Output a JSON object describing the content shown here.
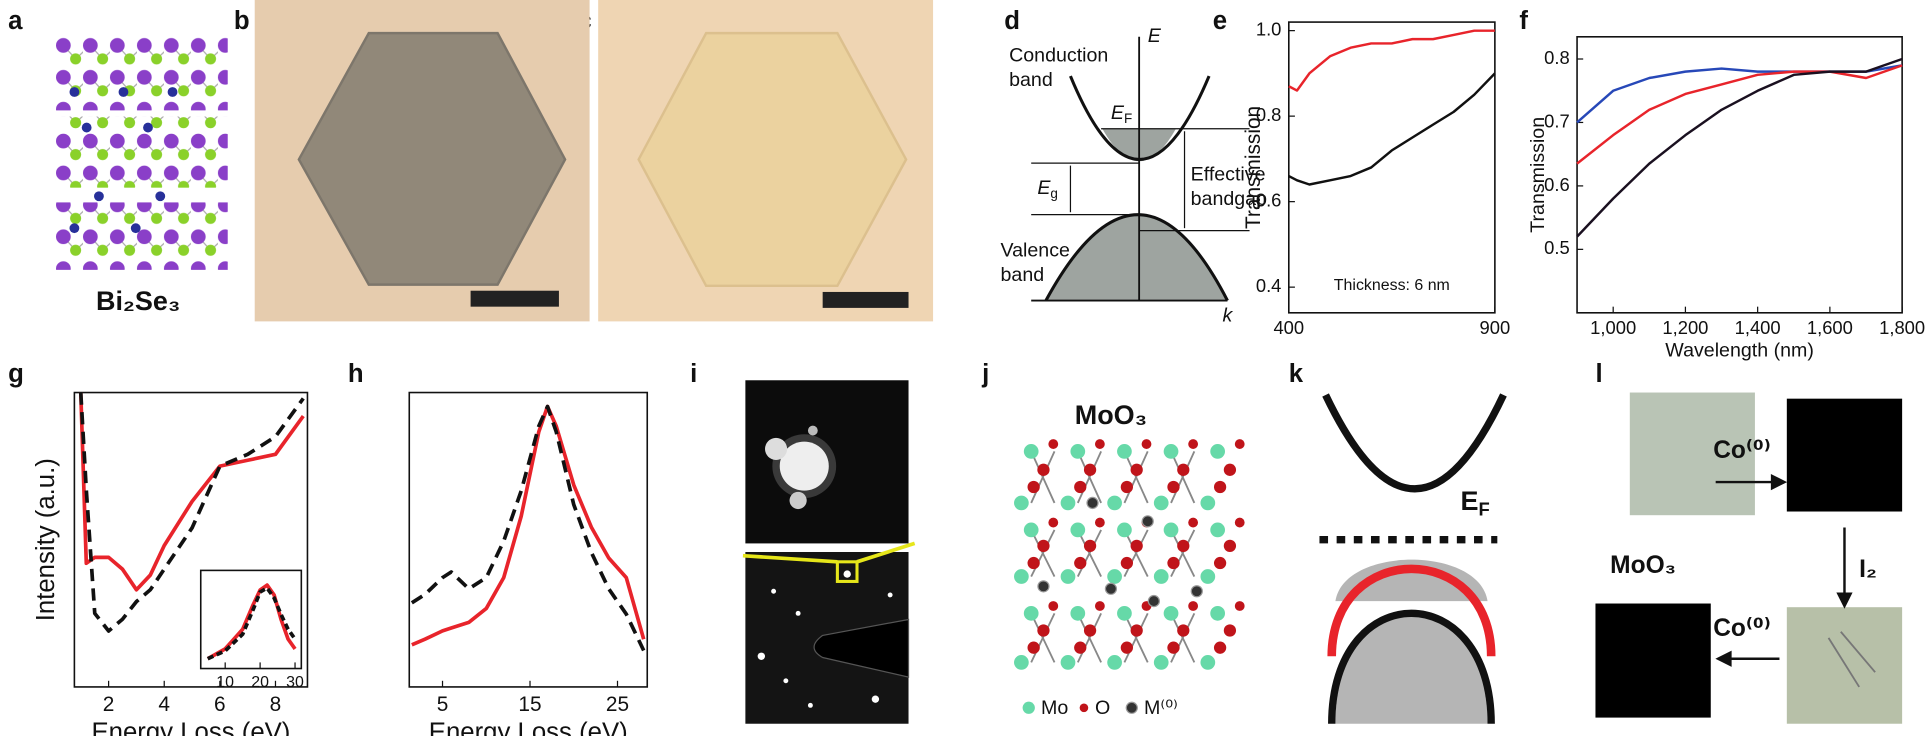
{
  "figure": {
    "panel_labels": [
      "a",
      "b",
      "c",
      "d",
      "e",
      "f",
      "g",
      "h",
      "i",
      "j",
      "k",
      "l"
    ],
    "a": {
      "label": "Bi₂Se₃"
    },
    "d": {
      "energy_axis": "E",
      "momentum_axis": "k",
      "conduction_band": [
        "Conduction",
        "band"
      ],
      "valence_band": [
        "Valence",
        "band"
      ],
      "fermi": {
        "symbol": "E",
        "sub": "F"
      },
      "gap": {
        "symbol": "E",
        "sub": "g"
      },
      "effective_bandgap": [
        "Effective",
        "bandgap"
      ]
    },
    "j": {
      "label": "MoO₃",
      "legend": [
        "Mo",
        "O",
        "M⁽⁰⁾"
      ]
    },
    "k": {
      "fermi": {
        "symbol": "E",
        "sub": "F"
      }
    },
    "l": {
      "step1": "Co⁽⁰⁾",
      "material": "MoO₃",
      "step2": "I₂",
      "step3": "Co⁽⁰⁾"
    }
  },
  "chart_data": [
    {
      "type": "line",
      "ylabel": "Transmission",
      "annotation": "Thickness: 6 nm",
      "x": [
        400,
        420,
        450,
        500,
        550,
        600,
        650,
        700,
        750,
        800,
        850,
        900
      ],
      "xlim": [
        400,
        900
      ],
      "xticks": [
        400,
        900
      ],
      "ylim": [
        0.34,
        1.02
      ],
      "yticks": [
        0.4,
        0.6,
        0.8,
        {
          "value": 1,
          "label": "1.0"
        }
      ],
      "series": [
        {
          "color": "#e8242b",
          "values": [
            0.87,
            0.86,
            0.9,
            0.94,
            0.96,
            0.97,
            0.97,
            0.98,
            0.98,
            0.99,
            1.0,
            1.0
          ]
        },
        {
          "color": "#111111",
          "values": [
            0.66,
            0.65,
            0.64,
            0.65,
            0.66,
            0.68,
            0.72,
            0.75,
            0.78,
            0.81,
            0.85,
            0.9
          ]
        }
      ]
    },
    {
      "type": "line",
      "xlabel": "Wavelength (nm)",
      "ylabel": "Transmission",
      "x": [
        900,
        1000,
        1100,
        1200,
        1300,
        1400,
        1500,
        1600,
        1700,
        1800
      ],
      "xlim": [
        900,
        1800
      ],
      "xticks": [
        {
          "value": 1000,
          "label": "1,000"
        },
        {
          "value": 1200,
          "label": "1,200"
        },
        {
          "value": 1400,
          "label": "1,400"
        },
        {
          "value": 1600,
          "label": "1,600"
        },
        {
          "value": 1800,
          "label": "1,800"
        }
      ],
      "ylim": [
        0.4,
        0.835
      ],
      "yticks": [
        0.5,
        0.6,
        0.7,
        0.8
      ],
      "series": [
        {
          "color": "#2748b8",
          "values": [
            0.7,
            0.75,
            0.77,
            0.78,
            0.785,
            0.78,
            0.78,
            0.78,
            0.78,
            0.79
          ]
        },
        {
          "color": "#e8242b",
          "values": [
            0.635,
            0.68,
            0.72,
            0.745,
            0.76,
            0.775,
            0.78,
            0.78,
            0.77,
            0.79
          ]
        },
        {
          "color": "#1a1020",
          "values": [
            0.52,
            0.58,
            0.635,
            0.68,
            0.72,
            0.75,
            0.775,
            0.78,
            0.78,
            0.8
          ]
        }
      ]
    },
    {
      "type": "line",
      "xlabel": "Energy Loss (eV)",
      "ylabel": "Intensity (a.u.)",
      "x": [
        1,
        1.2,
        1.5,
        2,
        2.5,
        3,
        3.5,
        4,
        5,
        6,
        7,
        8,
        9
      ],
      "xlim": [
        0.77,
        9.15
      ],
      "xticks": [
        2,
        4,
        6,
        8
      ],
      "ylim": [
        0,
        1
      ],
      "series": [
        {
          "color": "#e8242b",
          "values": [
            1.0,
            0.42,
            0.44,
            0.44,
            0.4,
            0.33,
            0.38,
            0.48,
            0.63,
            0.75,
            0.77,
            0.79,
            0.92
          ]
        },
        {
          "color": "#111111",
          "dash": true,
          "values": [
            1.0,
            0.67,
            0.25,
            0.19,
            0.23,
            0.29,
            0.33,
            0.4,
            0.54,
            0.75,
            0.79,
            0.85,
            0.98
          ]
        }
      ]
    },
    {
      "type": "line",
      "x": [
        5,
        10,
        15,
        18,
        20,
        22,
        24,
        26,
        28,
        30
      ],
      "xlim": [
        3,
        31.8
      ],
      "xticks": [
        10,
        20,
        30
      ],
      "ylim": [
        0,
        1
      ],
      "series": [
        {
          "color": "#e8242b",
          "values": [
            0.1,
            0.2,
            0.4,
            0.65,
            0.8,
            0.85,
            0.75,
            0.5,
            0.3,
            0.2
          ]
        },
        {
          "color": "#111111",
          "dash": true,
          "values": [
            0.1,
            0.18,
            0.35,
            0.6,
            0.78,
            0.82,
            0.72,
            0.55,
            0.4,
            0.3
          ]
        }
      ]
    },
    {
      "type": "line",
      "xlabel": "Energy Loss (eV)",
      "x": [
        1.5,
        3,
        5,
        6,
        8,
        10,
        12,
        14,
        16,
        17,
        18,
        20,
        22,
        24,
        26,
        28
      ],
      "xlim": [
        1.2,
        28.4
      ],
      "xticks": [
        5,
        15,
        25
      ],
      "ylim": [
        0,
        1.05
      ],
      "series": [
        {
          "color": "#e8242b",
          "values": [
            0.15,
            0.17,
            0.2,
            0.21,
            0.23,
            0.28,
            0.39,
            0.61,
            0.91,
            1.0,
            0.93,
            0.72,
            0.57,
            0.46,
            0.39,
            0.17
          ]
        },
        {
          "color": "#111111",
          "dash": true,
          "values": [
            0.3,
            0.33,
            0.39,
            0.41,
            0.35,
            0.39,
            0.52,
            0.7,
            0.93,
            1.0,
            0.91,
            0.65,
            0.48,
            0.35,
            0.26,
            0.13
          ]
        }
      ]
    }
  ]
}
